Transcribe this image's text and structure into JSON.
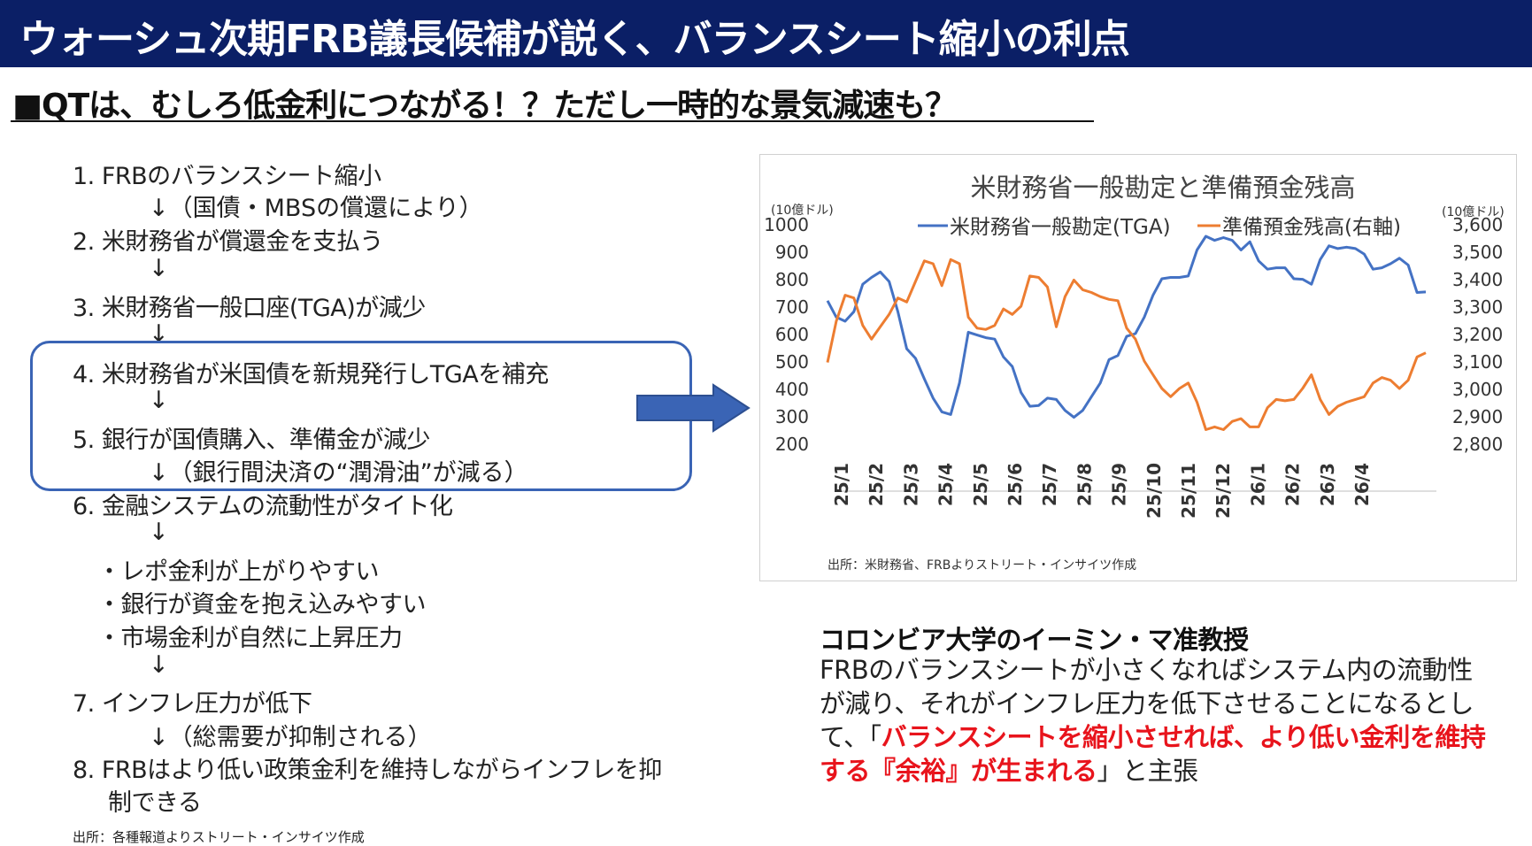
{
  "header": {
    "title": "ウォーシュ次期FRB議長候補が説く、バランスシート縮小の利点",
    "subtitle": "■QTは、むしろ低金利につながる！？ただし一時的な景気減速も？"
  },
  "steps": {
    "s1": "1. FRBのバランスシート縮小",
    "a1": "↓（国債・MBSの償還により）",
    "s2": "2.  米財務省が償還金を支払う",
    "a2": "↓",
    "s3": "3.  米財務省一般口座(TGA)が減少",
    "a3": "↓",
    "s4": "4.  米財務省が米国債を新規発行しTGAを補充",
    "a4": "↓",
    "s5": "5. 銀行が国債購入、準備金が減少",
    "a5": "↓（銀行間決済の“潤滑油”が減る）",
    "s6": "6. 金融システムの流動性がタイト化",
    "a6": "↓",
    "b1": "・レポ金利が上がりやすい",
    "b2": "・銀行が資金を抱え込みやすい",
    "b3": "・市場金利が自然に上昇圧力",
    "a7": "↓",
    "s7": "7. インフレ圧力が低下",
    "a8": "↓（総需要が抑制される）",
    "s8a": "8. FRBはより低い政策金利を維持しながらインフレを抑",
    "s8b": "制できる"
  },
  "source_left": "出所：各種報道よりストリート・インサイツ作成",
  "professor": {
    "name": "コロンビア大学のイーミン・マ准教授",
    "text1": "FRBのバランスシートが小さくなればシステム内の流動性が減り、それがインフレ圧力を低下させることになるとして、「",
    "emph": "バランスシートを縮小させれば、より低い金利を維持する『余裕』が生まれる",
    "text2": "」と主張"
  },
  "colors": {
    "header_bg": "#0b1f66",
    "box_border": "#3a64b5",
    "arrow_fill": "#3a64b5",
    "tga_line": "#4472c4",
    "reserves_line": "#ed7d31",
    "emphasis": "#e8141c"
  },
  "chart_data": {
    "type": "line",
    "title": "米財務省一般勘定と準備預金残高",
    "y_unit_left": "(10億ドル)",
    "y_unit_right": "(10億ドル)",
    "ylim_left": [
      200,
      1000
    ],
    "ylim_right": [
      2800,
      3600
    ],
    "yticks_left": [
      "1000",
      "900",
      "800",
      "700",
      "600",
      "500",
      "400",
      "300",
      "200"
    ],
    "yticks_right": [
      "3,600",
      "3,500",
      "3,400",
      "3,300",
      "3,200",
      "3,100",
      "3,000",
      "2,900",
      "2,800"
    ],
    "x_ticks": [
      "25/1",
      "25/2",
      "25/3",
      "25/4",
      "25/5",
      "25/6",
      "25/7",
      "25/8",
      "25/9",
      "25/10",
      "25/11",
      "25/12",
      "26/1",
      "26/2",
      "26/3",
      "26/4"
    ],
    "legend_position": "top",
    "source": "出所：米財務省、FRBよりストリート・インサイツ作成",
    "series": [
      {
        "name": "米財務省一般勘定(TGA)",
        "axis": "left",
        "values": [
          720,
          660,
          645,
          680,
          780,
          805,
          825,
          790,
          680,
          545,
          510,
          435,
          365,
          315,
          305,
          420,
          605,
          595,
          585,
          580,
          515,
          480,
          385,
          335,
          338,
          365,
          360,
          320,
          295,
          320,
          370,
          420,
          505,
          520,
          590,
          600,
          660,
          740,
          800,
          805,
          805,
          810,
          905,
          955,
          940,
          950,
          940,
          905,
          935,
          865,
          835,
          840,
          840,
          800,
          798,
          780,
          870,
          920,
          910,
          915,
          910,
          890,
          835,
          840,
          855,
          875,
          850,
          750,
          752
        ]
      },
      {
        "name": "準備預金残高(右軸)",
        "axis": "right",
        "values": [
          3095,
          3245,
          3340,
          3330,
          3230,
          3180,
          3225,
          3270,
          3330,
          3315,
          3390,
          3465,
          3455,
          3375,
          3470,
          3455,
          3260,
          3220,
          3215,
          3230,
          3290,
          3270,
          3300,
          3410,
          3405,
          3370,
          3225,
          3335,
          3395,
          3360,
          3350,
          3335,
          3325,
          3320,
          3220,
          3180,
          3100,
          3050,
          3000,
          2970,
          3000,
          3020,
          2950,
          2850,
          2860,
          2850,
          2880,
          2890,
          2860,
          2860,
          2930,
          2960,
          2955,
          2960,
          3000,
          3050,
          2960,
          2905,
          2935,
          2950,
          2960,
          2970,
          3020,
          3040,
          3030,
          3000,
          3030,
          3115,
          3130
        ]
      }
    ]
  }
}
